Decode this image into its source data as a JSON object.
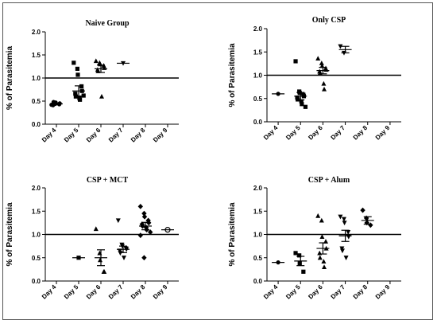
{
  "chart_data": [
    {
      "type": "scatter",
      "title": "Naive Group",
      "ylabel": "% of Parasitemia",
      "categories": [
        "Day 4",
        "Day 5",
        "Day 6",
        "Day 7",
        "Day 8",
        "Day 9"
      ],
      "ylim": [
        0,
        2.0
      ],
      "yticks": [
        "0.0",
        "0.5",
        "1.0",
        "1.5",
        "2.0"
      ],
      "reference_line": 1.0,
      "groups": [
        {
          "day": "Day 4",
          "marker": "circle",
          "points": [
            0.42,
            0.44,
            0.47,
            0.43,
            0.45,
            0.41,
            0.48
          ],
          "mean": 0.44,
          "err": 0.02
        },
        {
          "day": "Day 5",
          "marker": "square",
          "points": [
            1.33,
            1.2,
            1.07,
            0.82,
            0.72,
            0.66,
            0.6,
            0.56,
            0.53,
            0.62
          ],
          "mean": 0.72,
          "err": 0.11
        },
        {
          "day": "Day 6",
          "marker": "triangle-up",
          "points": [
            1.37,
            1.33,
            1.3,
            1.27,
            1.22,
            1.18,
            1.15,
            0.6
          ],
          "mean": 1.2,
          "err": 0.08
        },
        {
          "day": "Day 7",
          "marker": "triangle-down",
          "points": [
            1.32
          ],
          "mean": 1.32,
          "err": 0
        }
      ]
    },
    {
      "type": "scatter",
      "title": "Only CSP",
      "ylabel": "% of Parasitemia",
      "categories": [
        "Day 4",
        "Day 5",
        "Day 6",
        "Day 7",
        "Day 8",
        "Day 9"
      ],
      "ylim": [
        0,
        2.0
      ],
      "yticks": [
        "0.0",
        "0.5",
        "1.0",
        "1.5",
        "2.0"
      ],
      "reference_line": 1.0,
      "groups": [
        {
          "day": "Day 4",
          "marker": "circle",
          "points": [
            0.6
          ],
          "mean": 0.6,
          "err": 0
        },
        {
          "day": "Day 5",
          "marker": "square",
          "points": [
            1.3,
            0.65,
            0.62,
            0.58,
            0.55,
            0.52,
            0.48,
            0.44,
            0.38,
            0.32
          ],
          "mean": 0.55,
          "err": 0.08
        },
        {
          "day": "Day 6",
          "marker": "triangle-up",
          "points": [
            1.36,
            1.26,
            1.2,
            1.15,
            1.12,
            1.08,
            1.05,
            0.82,
            0.7
          ],
          "mean": 1.1,
          "err": 0.07
        },
        {
          "day": "Day 7",
          "marker": "triangle-down",
          "points": [
            1.62,
            1.48
          ],
          "mean": 1.55,
          "err": 0.07
        }
      ]
    },
    {
      "type": "scatter",
      "title": "CSP + MCT",
      "ylabel": "% of Parasitemia",
      "categories": [
        "Day 4",
        "Day 5",
        "Day 6",
        "Day 7",
        "Day 8",
        "Day 9"
      ],
      "ylim": [
        0,
        2.0
      ],
      "yticks": [
        "0.0",
        "0.5",
        "1.0",
        "1.5",
        "2.0"
      ],
      "reference_line": 1.0,
      "groups": [
        {
          "day": "Day 5",
          "marker": "square",
          "points": [
            0.5
          ],
          "mean": 0.5,
          "err": 0
        },
        {
          "day": "Day 6",
          "marker": "triangle-up",
          "points": [
            1.12,
            0.6,
            0.45,
            0.2,
            0.2
          ],
          "mean": 0.5,
          "err": 0.17
        },
        {
          "day": "Day 7",
          "marker": "triangle-down",
          "points": [
            1.3,
            0.78,
            0.75,
            0.7,
            0.68,
            0.65,
            0.6,
            0.5
          ],
          "mean": 0.68,
          "err": 0.07
        },
        {
          "day": "Day 8",
          "marker": "diamond",
          "points": [
            1.6,
            1.45,
            1.38,
            1.3,
            1.25,
            1.22,
            1.18,
            1.15,
            1.1,
            1.05,
            0.98,
            0.5
          ],
          "mean": 1.18,
          "err": 0.08
        },
        {
          "day": "Day 9",
          "marker": "circle-open",
          "points": [
            1.1
          ],
          "mean": 1.1,
          "err": 0
        }
      ]
    },
    {
      "type": "scatter",
      "title": "CSP + Alum",
      "ylabel": "% of Parasitemia",
      "categories": [
        "Day 4",
        "Day 5",
        "Day 6",
        "Day 7",
        "Day 8",
        "Day 9"
      ],
      "ylim": [
        0,
        2.0
      ],
      "yticks": [
        "0.0",
        "0.5",
        "1.0",
        "1.5",
        "2.0"
      ],
      "reference_line": 1.0,
      "groups": [
        {
          "day": "Day 4",
          "marker": "circle",
          "points": [
            0.4
          ],
          "mean": 0.4,
          "err": 0
        },
        {
          "day": "Day 5",
          "marker": "square",
          "points": [
            0.6,
            0.55,
            0.38,
            0.2
          ],
          "mean": 0.43,
          "err": 0.1
        },
        {
          "day": "Day 6",
          "marker": "triangle-up",
          "points": [
            1.4,
            1.3,
            0.95,
            0.85,
            0.7,
            0.6,
            0.5,
            0.42,
            0.3
          ],
          "mean": 0.7,
          "err": 0.12
        },
        {
          "day": "Day 7",
          "marker": "triangle-down",
          "points": [
            1.38,
            1.33,
            1.25,
            1.05,
            0.95,
            0.7,
            0.65,
            0.5
          ],
          "mean": 0.97,
          "err": 0.12
        },
        {
          "day": "Day 8",
          "marker": "diamond",
          "points": [
            1.52,
            1.35,
            1.25,
            1.2
          ],
          "mean": 1.3,
          "err": 0.08
        }
      ]
    }
  ]
}
